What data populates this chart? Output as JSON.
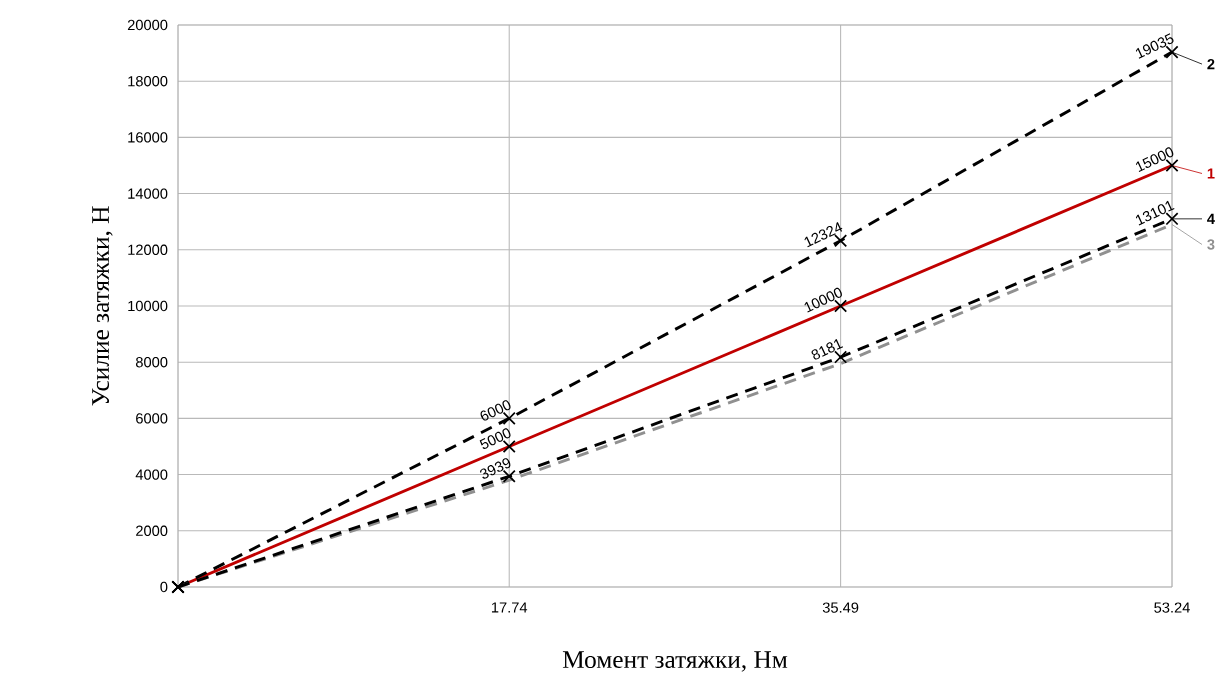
{
  "chart_data": {
    "type": "line",
    "xlabel": "Момент затяжки, Нм",
    "ylabel": "Усилие затяжки, Н",
    "x": [
      0,
      17.74,
      35.49,
      53.24
    ],
    "xlim": [
      0,
      53.24
    ],
    "xticks": [
      {
        "value": 0,
        "label": null
      },
      17.74,
      35.49,
      53.24
    ],
    "ylim": [
      0,
      20000
    ],
    "yticks": [
      0,
      2000,
      4000,
      6000,
      8000,
      10000,
      12000,
      14000,
      16000,
      18000,
      20000
    ],
    "grid": true,
    "marker": "cross",
    "legend": "right",
    "series": [
      {
        "name": "1",
        "color": "#c00000",
        "line_style": "solid",
        "values": [
          0,
          5000,
          10000,
          15000
        ],
        "value_labels": [
          null,
          "5000",
          "10000",
          "15000"
        ]
      },
      {
        "name": "2",
        "color": "#000000",
        "line_style": "dashed",
        "values": [
          0,
          6000,
          12324,
          19035
        ],
        "value_labels": [
          null,
          "6000",
          "12324",
          "19035"
        ]
      },
      {
        "name": "3",
        "color": "#909090",
        "line_style": "dashed",
        "marker": "none",
        "values": [
          0,
          3800,
          7950,
          12900
        ]
      },
      {
        "name": "4",
        "color": "#000000",
        "line_style": "dashed",
        "values": [
          0,
          3939,
          8181,
          13101
        ],
        "value_labels": [
          null,
          "3939",
          "8181",
          "13101"
        ]
      }
    ]
  }
}
